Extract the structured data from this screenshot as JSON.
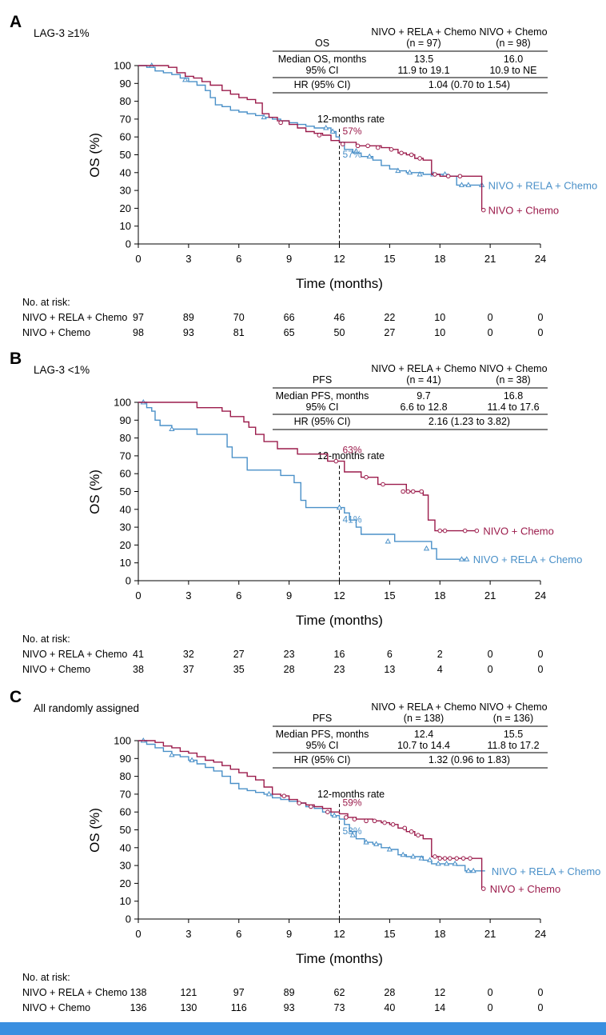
{
  "colors": {
    "nivo_rela_chemo": "#4a90c8",
    "nivo_chemo": "#9b1b4b",
    "footer_bar": "#3a8fe0",
    "rule": "#000000"
  },
  "chart_data": [
    {
      "type": "line",
      "panel_label": "A",
      "subgroup": "LAG-3 ≥1%",
      "title": "LAG-3 ≥1%",
      "xlabel": "Time (months)",
      "ylabel": "OS (%)",
      "xlim": [
        0,
        24
      ],
      "ylim": [
        0,
        100
      ],
      "xticks": [
        "0",
        "3",
        "6",
        "9",
        "12",
        "15",
        "18",
        "21",
        "24"
      ],
      "yticks": [
        "0",
        "10",
        "20",
        "30",
        "40",
        "50",
        "60",
        "70",
        "80",
        "90",
        "100"
      ],
      "milestone_label": "12-months rate",
      "milestone_month": 12,
      "stat_table": {
        "endpoint": "OS",
        "col1_header": "NIVO + RELA + Chemo",
        "col1_n": "(n = 97)",
        "col2_header": "NIVO + Chemo",
        "col2_n": "(n = 98)",
        "median_label": "Median OS, months",
        "median_col1": "13.5",
        "median_col2": "16.0",
        "ci_label": "95% CI",
        "ci_col1": "11.9 to 19.1",
        "ci_col2": "10.9 to NE",
        "hr_label": "HR (95% CI)",
        "hr_value": "1.04 (0.70 to 1.54)"
      },
      "risk_table": {
        "heading": "No. at risk:",
        "rows": [
          {
            "label": "NIVO + RELA + Chemo",
            "values": [
              "97",
              "89",
              "70",
              "66",
              "46",
              "22",
              "10",
              "0",
              "0"
            ]
          },
          {
            "label": "NIVO + Chemo",
            "values": [
              "98",
              "93",
              "81",
              "65",
              "50",
              "27",
              "10",
              "0",
              "0"
            ]
          }
        ]
      },
      "series": [
        {
          "name": "NIVO + RELA + Chemo",
          "end_label": "NIVO + RELA + Chemo",
          "rate_label": "57%",
          "marker": "triangle",
          "x": [
            0,
            0.5,
            1,
            1.5,
            2,
            2.5,
            3,
            3.5,
            4,
            4.3,
            4.6,
            5,
            5.5,
            6,
            6.5,
            7,
            7.5,
            8,
            8.5,
            9,
            9.5,
            10,
            10.5,
            11,
            11.5,
            11.8,
            12,
            12.3,
            12.8,
            13.3,
            14,
            14.5,
            15,
            15.5,
            16,
            17,
            18,
            18.5,
            19,
            19.5,
            20.5
          ],
          "y": [
            100,
            99,
            97,
            96,
            95,
            93,
            91,
            89,
            86,
            82,
            78,
            77,
            75,
            74,
            73,
            72,
            71,
            70,
            69,
            68,
            67,
            66,
            65,
            65,
            63,
            60,
            57,
            53,
            51,
            49,
            47,
            44,
            42,
            41,
            40,
            39,
            39,
            38,
            33,
            33,
            33
          ],
          "censor_x": [
            0.8,
            2.8,
            7.5,
            11.2,
            11.6,
            13,
            13.8,
            15.5,
            16.2,
            16.8,
            17.6,
            18.3,
            19.3,
            19.7,
            20.5
          ],
          "censor_y": [
            100,
            92,
            71,
            65,
            63,
            52,
            49,
            41,
            40,
            39,
            39,
            39,
            33,
            33,
            33
          ]
        },
        {
          "name": "NIVO + Chemo",
          "end_label": "NIVO + Chemo",
          "rate_label": "57%",
          "marker": "circle",
          "x": [
            0,
            1,
            1.8,
            2.3,
            2.8,
            3.3,
            3.8,
            4.3,
            5,
            5.5,
            6,
            6.5,
            7,
            7.4,
            7.8,
            8.3,
            9,
            9.5,
            10,
            10.5,
            11,
            11.5,
            12,
            13,
            14,
            14.5,
            15,
            15.5,
            16,
            16.5,
            17,
            17.5,
            18,
            19,
            20,
            20.5
          ],
          "y": [
            100,
            100,
            99,
            96,
            94,
            93,
            91,
            89,
            86,
            84,
            82,
            81,
            79,
            73,
            71,
            69,
            67,
            65,
            63,
            62,
            61,
            58,
            57,
            55,
            55,
            54,
            53,
            51,
            50,
            48,
            47,
            39,
            38,
            38,
            38,
            19
          ],
          "censor_x": [
            8.5,
            10.8,
            12.2,
            13.1,
            13.7,
            14.3,
            15.1,
            15.7,
            16.3,
            16.8,
            17.7,
            18.5,
            19.2,
            20.6
          ],
          "censor_y": [
            68,
            61,
            56,
            55,
            55,
            54,
            53,
            51,
            50,
            48,
            39,
            38,
            38,
            19
          ]
        }
      ]
    },
    {
      "type": "line",
      "panel_label": "B",
      "subgroup": "LAG-3 <1%",
      "title": "LAG-3 <1%",
      "xlabel": "Time (months)",
      "ylabel": "OS (%)",
      "xlim": [
        0,
        24
      ],
      "ylim": [
        0,
        100
      ],
      "xticks": [
        "0",
        "3",
        "6",
        "9",
        "12",
        "15",
        "18",
        "21",
        "24"
      ],
      "yticks": [
        "0",
        "10",
        "20",
        "30",
        "40",
        "50",
        "60",
        "70",
        "80",
        "90",
        "100"
      ],
      "milestone_label": "12-months rate",
      "milestone_month": 12,
      "stat_table": {
        "endpoint": "PFS",
        "col1_header": "NIVO + RELA + Chemo",
        "col1_n": "(n = 41)",
        "col2_header": "NIVO + Chemo",
        "col2_n": "(n = 38)",
        "median_label": "Median PFS, months",
        "median_col1": "9.7",
        "median_col2": "16.8",
        "ci_label": "95% CI",
        "ci_col1": "6.6 to 12.8",
        "ci_col2": "11.4 to 17.6",
        "hr_label": "HR (95% CI)",
        "hr_value": "2.16 (1.23 to 3.82)"
      },
      "risk_table": {
        "heading": "No. at risk:",
        "rows": [
          {
            "label": "NIVO + RELA + Chemo",
            "values": [
              "41",
              "32",
              "27",
              "23",
              "16",
              "6",
              "2",
              "0",
              "0"
            ]
          },
          {
            "label": "NIVO + Chemo",
            "values": [
              "38",
              "37",
              "35",
              "28",
              "23",
              "13",
              "4",
              "0",
              "0"
            ]
          }
        ]
      },
      "series": [
        {
          "name": "NIVO + RELA + Chemo",
          "end_label": "NIVO + RELA + Chemo",
          "rate_label": "41%",
          "marker": "triangle",
          "x": [
            0,
            0.5,
            0.8,
            1,
            1.3,
            2,
            3.5,
            5.3,
            5.6,
            6.5,
            8.5,
            9.3,
            9.7,
            10,
            11.5,
            12,
            12.3,
            12.6,
            13,
            13.3,
            14.5,
            15.3,
            17.5,
            17.8,
            19.5
          ],
          "y": [
            100,
            97,
            95,
            90,
            87,
            85,
            82,
            75,
            69,
            62,
            59,
            55,
            45,
            41,
            41,
            41,
            38,
            34,
            30,
            26,
            26,
            22,
            18,
            12,
            12
          ],
          "censor_x": [
            0.3,
            2,
            12,
            14.9,
            17.2,
            19.3,
            19.6
          ],
          "censor_y": [
            100,
            85,
            41,
            22,
            18,
            12,
            12
          ],
          "end_x": 19.6,
          "end_y": 12
        },
        {
          "name": "NIVO + Chemo",
          "end_label": "NIVO + Chemo",
          "rate_label": "63%",
          "marker": "circle",
          "x": [
            0,
            1.5,
            3.5,
            5,
            5.5,
            6.3,
            6.6,
            7,
            7.5,
            8.3,
            9,
            9.5,
            10.5,
            11.3,
            12.3,
            13.3,
            13.8,
            14.3,
            15,
            16,
            16.7,
            17,
            17.3,
            17.7,
            18,
            19,
            20
          ],
          "y": [
            100,
            100,
            97,
            95,
            92,
            89,
            86,
            82,
            78,
            74,
            74,
            71,
            71,
            67,
            61,
            58,
            58,
            54,
            54,
            50,
            50,
            48,
            34,
            28,
            28,
            28,
            28
          ],
          "censor_x": [
            11.8,
            13.6,
            14.6,
            15.8,
            16.1,
            16.4,
            16.9,
            18,
            18.3,
            19.5,
            20.2
          ],
          "censor_y": [
            67,
            58,
            54,
            50,
            50,
            50,
            50,
            28,
            28,
            28,
            28
          ],
          "end_x": 20.2,
          "end_y": 28
        }
      ]
    },
    {
      "type": "line",
      "panel_label": "C",
      "subgroup": "All randomly assigned",
      "title": "All randomly assigned",
      "xlabel": "Time (months)",
      "ylabel": "OS (%)",
      "xlim": [
        0,
        24
      ],
      "ylim": [
        0,
        100
      ],
      "xticks": [
        "0",
        "3",
        "6",
        "9",
        "12",
        "15",
        "18",
        "21",
        "24"
      ],
      "yticks": [
        "0",
        "10",
        "20",
        "30",
        "40",
        "50",
        "60",
        "70",
        "80",
        "90",
        "100"
      ],
      "milestone_label": "12-months rate",
      "milestone_month": 12,
      "stat_table": {
        "endpoint": "PFS",
        "col1_header": "NIVO + RELA + Chemo",
        "col1_n": "(n = 138)",
        "col2_header": "NIVO + Chemo",
        "col2_n": "(n = 136)",
        "median_label": "Median PFS, months",
        "median_col1": "12.4",
        "median_col2": "15.5",
        "ci_label": "95% CI",
        "ci_col1": "10.7 to 14.4",
        "ci_col2": "11.8 to 17.2",
        "hr_label": "HR (95% CI)",
        "hr_value": "1.32 (0.96 to 1.83)"
      },
      "risk_table": {
        "heading": "No. at risk:",
        "rows": [
          {
            "label": "NIVO + RELA + Chemo",
            "values": [
              "138",
              "121",
              "97",
              "89",
              "62",
              "28",
              "12",
              "0",
              "0"
            ]
          },
          {
            "label": "NIVO + Chemo",
            "values": [
              "136",
              "130",
              "116",
              "93",
              "73",
              "40",
              "14",
              "0",
              "0"
            ]
          }
        ]
      },
      "series": [
        {
          "name": "NIVO + RELA + Chemo",
          "end_label": "NIVO + RELA + Chemo",
          "rate_label": "53%",
          "marker": "triangle",
          "x": [
            0,
            0.5,
            1,
            1.5,
            2,
            2.5,
            3,
            3.5,
            4,
            4.5,
            5,
            5.5,
            6,
            6.5,
            7,
            7.5,
            8,
            8.5,
            9,
            9.5,
            10,
            10.5,
            11,
            11.5,
            12,
            12.3,
            12.6,
            13,
            13.5,
            14,
            14.5,
            15,
            15.5,
            16,
            17,
            17.5,
            18,
            19,
            19.5,
            20.5
          ],
          "y": [
            100,
            98,
            96,
            94,
            92,
            91,
            89,
            87,
            85,
            83,
            80,
            76,
            73,
            72,
            71,
            70,
            68,
            67,
            66,
            65,
            63,
            62,
            60,
            58,
            56,
            53,
            49,
            45,
            43,
            42,
            40,
            39,
            36,
            35,
            33,
            31,
            31,
            30,
            27,
            27
          ],
          "censor_x": [
            0.3,
            2,
            3.2,
            7.8,
            11.7,
            12.8,
            13.6,
            14.2,
            15,
            15.8,
            16.4,
            16.9,
            17.4,
            17.9,
            18.4,
            18.9,
            19.7,
            20
          ],
          "censor_y": [
            100,
            92,
            89,
            70,
            58,
            47,
            43,
            42,
            39,
            36,
            35,
            34,
            33,
            31,
            31,
            31,
            27,
            27
          ],
          "end_x": 20.7,
          "end_y": 27
        },
        {
          "name": "NIVO + Chemo",
          "end_label": "NIVO + Chemo",
          "rate_label": "59%",
          "marker": "circle",
          "x": [
            0,
            1,
            1.5,
            2,
            2.5,
            3,
            3.5,
            4,
            4.5,
            5,
            5.5,
            6,
            6.5,
            7,
            7.5,
            8,
            8.5,
            9,
            9.5,
            10,
            10.5,
            11,
            11.5,
            12,
            12.5,
            13,
            14,
            14.5,
            15,
            15.5,
            16,
            16.5,
            17,
            17.5,
            18,
            19,
            20,
            20.5
          ],
          "y": [
            100,
            99,
            97,
            96,
            94,
            93,
            91,
            89,
            88,
            86,
            84,
            82,
            80,
            78,
            74,
            70,
            69,
            67,
            65,
            64,
            63,
            62,
            60,
            59,
            57,
            56,
            55,
            54,
            53,
            51,
            49,
            47,
            45,
            35,
            34,
            34,
            34,
            17
          ],
          "censor_x": [
            8.7,
            9.6,
            10.3,
            11.3,
            12.4,
            12.9,
            13.6,
            14.1,
            14.7,
            15.2,
            15.9,
            16.3,
            16.7,
            17.7,
            18,
            18.3,
            18.6,
            19,
            19.4,
            19.8,
            20.6
          ],
          "censor_y": [
            69,
            65,
            63,
            60,
            57,
            56,
            55,
            55,
            54,
            53,
            51,
            49,
            47,
            35,
            34,
            34,
            34,
            34,
            34,
            34,
            17
          ],
          "end_x": 20.6,
          "end_y": 17
        }
      ]
    }
  ]
}
